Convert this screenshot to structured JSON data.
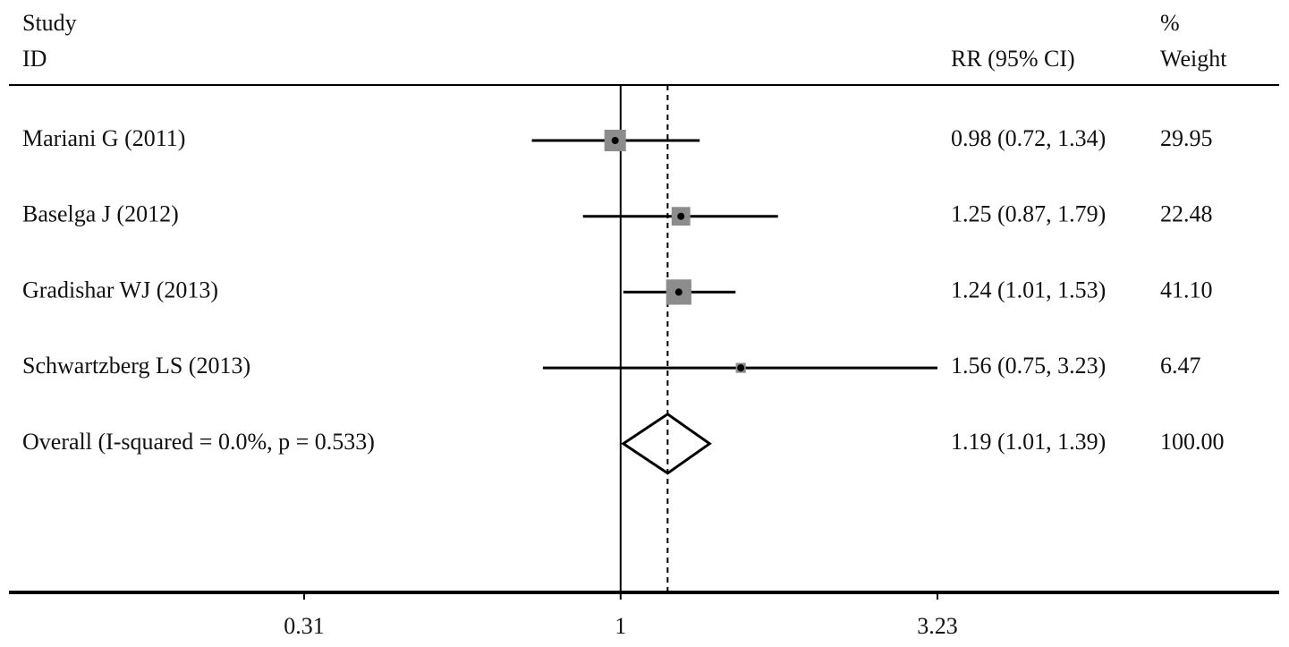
{
  "chart_data": {
    "type": "forest",
    "columns": {
      "study": "Study",
      "id": "ID",
      "ci": "RR (95% CI)",
      "pct": "%",
      "weight": "Weight"
    },
    "categories": [
      "Mariani G (2011)",
      "Baselga J (2012)",
      "Gradishar WJ (2013)",
      "Schwartzberg LS (2013)"
    ],
    "values": [
      0.98,
      1.25,
      1.24,
      1.56
    ],
    "lower": [
      0.72,
      0.87,
      1.01,
      0.75
    ],
    "upper": [
      1.34,
      1.79,
      1.53,
      3.23
    ],
    "value_labels": [
      "0.98 (0.72, 1.34)",
      "1.25 (0.87, 1.79)",
      "1.24 (1.01, 1.53)",
      "1.56 (0.75, 3.23)"
    ],
    "weights": [
      29.95,
      22.48,
      41.1,
      6.47
    ],
    "weight_labels": [
      "29.95",
      "22.48",
      "41.10",
      "6.47"
    ],
    "overall": {
      "label": "Overall  (I-squared = 0.0%, p = 0.533)",
      "value": 1.19,
      "lower": 1.01,
      "upper": 1.39,
      "value_label": "1.19 (1.01, 1.39)",
      "weight": 100,
      "weight_label": "100.00"
    },
    "reference_line": 1,
    "log_scale": true,
    "xlim": [
      0.31,
      3.23
    ],
    "xticks": [
      0.31,
      1,
      3.23
    ],
    "box_color": "#8c8c8c",
    "line_color": "#000000"
  }
}
